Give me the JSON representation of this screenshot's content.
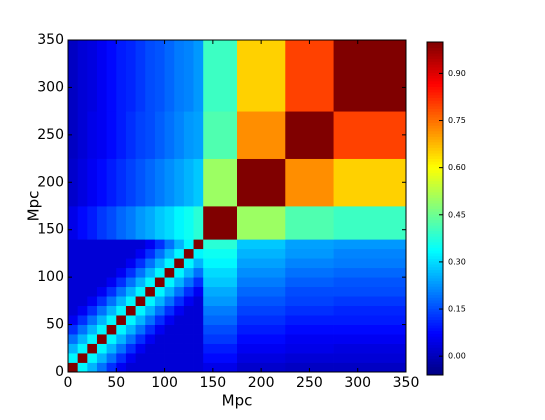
{
  "chart_data": {
    "type": "heatmap",
    "colormap": "jet",
    "xlabel": "Mpc",
    "ylabel": "Mpc",
    "bins": [
      0,
      10,
      20,
      30,
      40,
      50,
      60,
      70,
      80,
      90,
      100,
      110,
      120,
      130,
      140,
      175,
      225,
      275,
      350
    ],
    "xlim": [
      0,
      350
    ],
    "ylim": [
      0,
      350
    ],
    "xticks": [
      0,
      50,
      100,
      150,
      200,
      250,
      300,
      350
    ],
    "yticks": [
      0,
      50,
      100,
      150,
      200,
      250,
      300,
      350
    ],
    "clim": [
      -0.06,
      1.0
    ],
    "colorbar_ticks": [
      {
        "value": 0,
        "label": "0.00"
      },
      {
        "value": 0.15,
        "label": "0.15"
      },
      {
        "value": 0.3,
        "label": "0.30"
      },
      {
        "value": 0.45,
        "label": "0.45"
      },
      {
        "value": 0.6,
        "label": "0.60"
      },
      {
        "value": 0.75,
        "label": "0.75"
      },
      {
        "value": 0.9,
        "label": "0.90"
      }
    ],
    "values": [
      [
        1,
        0.33,
        0.26,
        0.19,
        0.12,
        0.06,
        0.03,
        0.03,
        0.03,
        0.03,
        0.03,
        0.03,
        0.03,
        0.03,
        0.05,
        0.02,
        0.01,
        0.01
      ],
      [
        0.33,
        1,
        0.33,
        0.26,
        0.19,
        0.12,
        0.06,
        0.03,
        0.03,
        0.03,
        0.03,
        0.03,
        0.03,
        0.03,
        0.08,
        0.04,
        0.03,
        0.03
      ],
      [
        0.26,
        0.33,
        1,
        0.33,
        0.26,
        0.19,
        0.12,
        0.06,
        0.03,
        0.03,
        0.03,
        0.03,
        0.03,
        0.03,
        0.1,
        0.06,
        0.05,
        0.04
      ],
      [
        0.19,
        0.26,
        0.33,
        1,
        0.33,
        0.26,
        0.19,
        0.12,
        0.06,
        0.03,
        0.03,
        0.03,
        0.03,
        0.03,
        0.13,
        0.08,
        0.06,
        0.06
      ],
      [
        0.12,
        0.19,
        0.26,
        0.33,
        1,
        0.33,
        0.26,
        0.19,
        0.12,
        0.06,
        0.03,
        0.03,
        0.03,
        0.03,
        0.15,
        0.1,
        0.08,
        0.08
      ],
      [
        0.06,
        0.12,
        0.19,
        0.26,
        0.33,
        1,
        0.33,
        0.26,
        0.19,
        0.12,
        0.06,
        0.03,
        0.03,
        0.03,
        0.18,
        0.12,
        0.1,
        0.1
      ],
      [
        0.03,
        0.06,
        0.12,
        0.19,
        0.26,
        0.33,
        1,
        0.33,
        0.26,
        0.19,
        0.12,
        0.06,
        0.03,
        0.03,
        0.2,
        0.14,
        0.12,
        0.11
      ],
      [
        0.03,
        0.03,
        0.06,
        0.12,
        0.19,
        0.26,
        0.33,
        1,
        0.33,
        0.26,
        0.19,
        0.12,
        0.06,
        0.03,
        0.23,
        0.16,
        0.14,
        0.13
      ],
      [
        0.03,
        0.03,
        0.03,
        0.06,
        0.12,
        0.19,
        0.26,
        0.33,
        1,
        0.33,
        0.26,
        0.19,
        0.12,
        0.06,
        0.25,
        0.18,
        0.15,
        0.15
      ],
      [
        0.03,
        0.03,
        0.03,
        0.03,
        0.06,
        0.12,
        0.19,
        0.26,
        0.33,
        1,
        0.33,
        0.26,
        0.19,
        0.12,
        0.28,
        0.2,
        0.17,
        0.16
      ],
      [
        0.03,
        0.03,
        0.03,
        0.03,
        0.03,
        0.06,
        0.12,
        0.19,
        0.26,
        0.33,
        1,
        0.33,
        0.26,
        0.19,
        0.3,
        0.22,
        0.19,
        0.18
      ],
      [
        0.03,
        0.03,
        0.03,
        0.03,
        0.03,
        0.03,
        0.06,
        0.12,
        0.19,
        0.26,
        0.33,
        1,
        0.33,
        0.26,
        0.33,
        0.24,
        0.21,
        0.2
      ],
      [
        0.03,
        0.03,
        0.03,
        0.03,
        0.03,
        0.03,
        0.03,
        0.06,
        0.12,
        0.19,
        0.26,
        0.33,
        1,
        0.33,
        0.35,
        0.26,
        0.23,
        0.21
      ],
      [
        0.03,
        0.03,
        0.03,
        0.03,
        0.03,
        0.03,
        0.03,
        0.03,
        0.06,
        0.12,
        0.19,
        0.26,
        0.33,
        1,
        0.38,
        0.28,
        0.24,
        0.23
      ],
      [
        0.05,
        0.08,
        0.1,
        0.13,
        0.15,
        0.18,
        0.2,
        0.23,
        0.25,
        0.28,
        0.3,
        0.33,
        0.35,
        0.38,
        1,
        0.5,
        0.42,
        0.4
      ],
      [
        0.02,
        0.04,
        0.06,
        0.08,
        0.1,
        0.12,
        0.14,
        0.16,
        0.18,
        0.2,
        0.22,
        0.24,
        0.26,
        0.28,
        0.5,
        1,
        0.72,
        0.65
      ],
      [
        0.01,
        0.03,
        0.05,
        0.06,
        0.08,
        0.1,
        0.12,
        0.14,
        0.15,
        0.17,
        0.19,
        0.21,
        0.23,
        0.24,
        0.42,
        0.72,
        1,
        0.8
      ],
      [
        0.01,
        0.03,
        0.04,
        0.06,
        0.08,
        0.1,
        0.11,
        0.13,
        0.15,
        0.16,
        0.18,
        0.2,
        0.21,
        0.23,
        0.4,
        0.65,
        0.8,
        1
      ]
    ]
  }
}
